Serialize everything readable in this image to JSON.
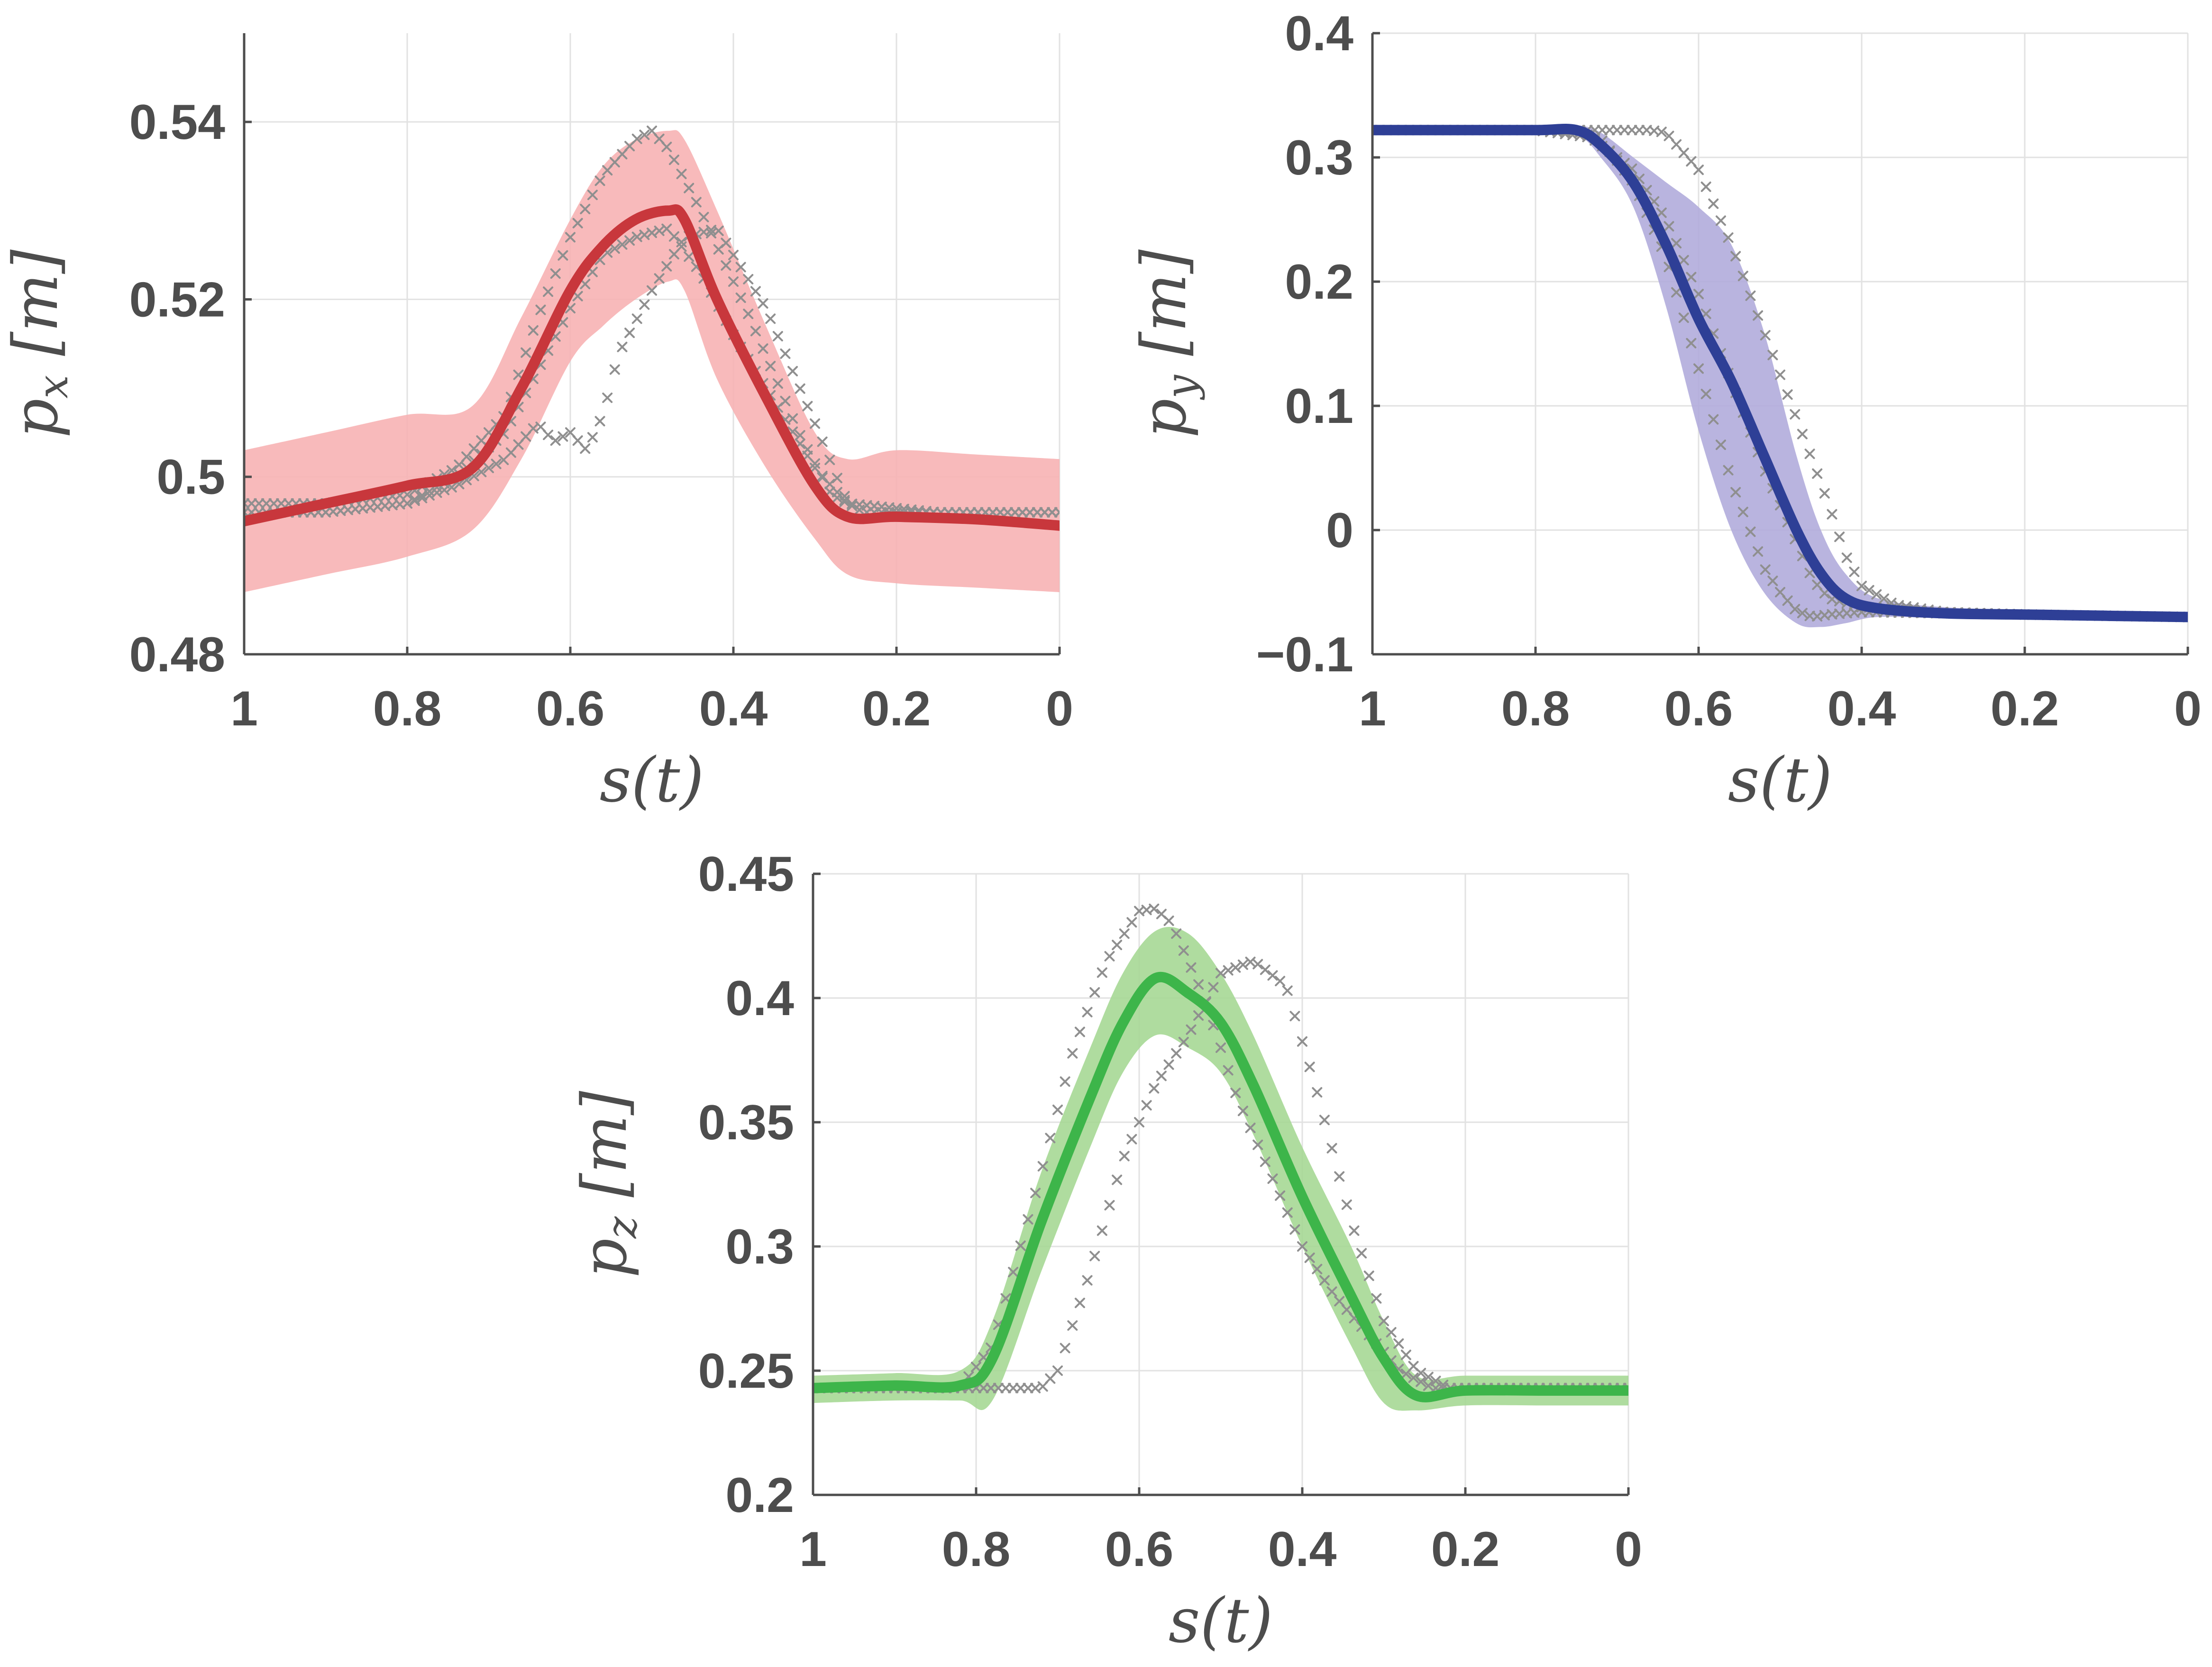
{
  "chart_data": [
    {
      "id": "px",
      "type": "line",
      "ylabel_symbol": "p",
      "ylabel_subscript": "x",
      "ylabel_unit": "[m]",
      "xlabel": "s(t)",
      "xlim": [
        1,
        0
      ],
      "ylim": [
        0.48,
        0.55
      ],
      "xticks": [
        1,
        0.8,
        0.6,
        0.4,
        0.2,
        0
      ],
      "xtick_labels": [
        "1",
        "0.8",
        "0.6",
        "0.4",
        "0.2",
        "0"
      ],
      "yticks": [
        0.48,
        0.5,
        0.52,
        0.54
      ],
      "ytick_labels": [
        "0.48",
        "0.5",
        "0.52",
        "0.54"
      ],
      "grid": true,
      "colors": {
        "mean": "#c8373c",
        "band": "#f7b2b4",
        "demo": "#8f8f8f"
      },
      "series": [
        {
          "name": "mean",
          "x": [
            1.0,
            0.9,
            0.8,
            0.72,
            0.66,
            0.6,
            0.56,
            0.52,
            0.48,
            0.46,
            0.42,
            0.36,
            0.3,
            0.26,
            0.2,
            0.1,
            0.0
          ],
          "y": [
            0.495,
            0.497,
            0.499,
            0.501,
            0.51,
            0.521,
            0.526,
            0.529,
            0.53,
            0.529,
            0.52,
            0.509,
            0.499,
            0.4955,
            0.4955,
            0.4952,
            0.4945
          ]
        },
        {
          "name": "band_upper",
          "x": [
            1.0,
            0.9,
            0.8,
            0.72,
            0.66,
            0.6,
            0.56,
            0.52,
            0.48,
            0.46,
            0.42,
            0.36,
            0.3,
            0.26,
            0.2,
            0.1,
            0.0
          ],
          "y": [
            0.503,
            0.505,
            0.507,
            0.508,
            0.518,
            0.529,
            0.535,
            0.538,
            0.539,
            0.538,
            0.53,
            0.517,
            0.505,
            0.502,
            0.503,
            0.5025,
            0.502
          ]
        },
        {
          "name": "band_lower",
          "x": [
            1.0,
            0.9,
            0.8,
            0.72,
            0.66,
            0.6,
            0.56,
            0.52,
            0.48,
            0.46,
            0.42,
            0.36,
            0.3,
            0.26,
            0.2,
            0.1,
            0.0
          ],
          "y": [
            0.487,
            0.489,
            0.491,
            0.494,
            0.502,
            0.513,
            0.517,
            0.52,
            0.522,
            0.521,
            0.511,
            0.501,
            0.493,
            0.489,
            0.488,
            0.4875,
            0.487
          ]
        },
        {
          "name": "demo_1",
          "x": [
            1.0,
            0.9,
            0.8,
            0.74,
            0.68,
            0.64,
            0.6,
            0.56,
            0.52,
            0.5,
            0.48,
            0.44,
            0.38,
            0.32,
            0.28,
            0.24,
            0.15,
            0.0
          ],
          "y": [
            0.497,
            0.497,
            0.498,
            0.501,
            0.507,
            0.518,
            0.527,
            0.534,
            0.538,
            0.539,
            0.537,
            0.53,
            0.518,
            0.505,
            0.498,
            0.496,
            0.496,
            0.496
          ]
        },
        {
          "name": "demo_2",
          "x": [
            1.0,
            0.9,
            0.8,
            0.74,
            0.68,
            0.64,
            0.62,
            0.6,
            0.58,
            0.56,
            0.54,
            0.5,
            0.46,
            0.42,
            0.36,
            0.3,
            0.26,
            0.15,
            0.0
          ],
          "y": [
            0.496,
            0.496,
            0.497,
            0.499,
            0.502,
            0.506,
            0.504,
            0.505,
            0.503,
            0.507,
            0.514,
            0.521,
            0.527,
            0.528,
            0.519,
            0.506,
            0.497,
            0.496,
            0.496
          ]
        },
        {
          "name": "demo_3",
          "x": [
            1.0,
            0.9,
            0.8,
            0.74,
            0.68,
            0.64,
            0.6,
            0.56,
            0.52,
            0.48,
            0.44,
            0.4,
            0.36,
            0.3,
            0.26,
            0.15,
            0.0
          ],
          "y": [
            0.496,
            0.496,
            0.497,
            0.5,
            0.505,
            0.512,
            0.519,
            0.525,
            0.527,
            0.528,
            0.523,
            0.516,
            0.51,
            0.501,
            0.497,
            0.496,
            0.496
          ]
        }
      ]
    },
    {
      "id": "py",
      "type": "line",
      "ylabel_symbol": "p",
      "ylabel_subscript": "y",
      "ylabel_unit": "[m]",
      "xlabel": "s(t)",
      "xlim": [
        1,
        0
      ],
      "ylim": [
        -0.1,
        0.4
      ],
      "xticks": [
        1,
        0.8,
        0.6,
        0.4,
        0.2,
        0
      ],
      "xtick_labels": [
        "1",
        "0.8",
        "0.6",
        "0.4",
        "0.2",
        "0"
      ],
      "yticks": [
        -0.1,
        0,
        0.1,
        0.2,
        0.3,
        0.4
      ],
      "ytick_labels": [
        "−0.1",
        "0",
        "0.1",
        "0.2",
        "0.3",
        "0.4"
      ],
      "grid": true,
      "colors": {
        "mean": "#2e3f96",
        "band": "#b1acdc",
        "demo": "#8f8f8f"
      },
      "series": [
        {
          "name": "mean",
          "x": [
            1.0,
            0.9,
            0.8,
            0.75,
            0.72,
            0.68,
            0.64,
            0.6,
            0.56,
            0.52,
            0.48,
            0.45,
            0.42,
            0.38,
            0.3,
            0.2,
            0.1,
            0.0
          ],
          "y": [
            0.322,
            0.322,
            0.322,
            0.322,
            0.31,
            0.28,
            0.23,
            0.17,
            0.12,
            0.06,
            0.0,
            -0.035,
            -0.055,
            -0.063,
            -0.067,
            -0.068,
            -0.069,
            -0.07
          ]
        },
        {
          "name": "band_upper",
          "x": [
            1.0,
            0.9,
            0.8,
            0.75,
            0.72,
            0.68,
            0.64,
            0.6,
            0.56,
            0.52,
            0.48,
            0.45,
            0.42,
            0.38,
            0.3,
            0.2,
            0.1,
            0.0
          ],
          "y": [
            0.326,
            0.326,
            0.326,
            0.326,
            0.32,
            0.3,
            0.28,
            0.26,
            0.23,
            0.16,
            0.06,
            0.0,
            -0.035,
            -0.055,
            -0.062,
            -0.064,
            -0.065,
            -0.066
          ]
        },
        {
          "name": "band_lower",
          "x": [
            1.0,
            0.9,
            0.8,
            0.75,
            0.72,
            0.68,
            0.64,
            0.6,
            0.56,
            0.52,
            0.48,
            0.45,
            0.42,
            0.38,
            0.3,
            0.2,
            0.1,
            0.0
          ],
          "y": [
            0.318,
            0.318,
            0.318,
            0.318,
            0.3,
            0.26,
            0.18,
            0.08,
            0.0,
            -0.05,
            -0.075,
            -0.078,
            -0.075,
            -0.07,
            -0.071,
            -0.072,
            -0.073,
            -0.074
          ]
        },
        {
          "name": "demo_1",
          "x": [
            1.0,
            0.9,
            0.8,
            0.72,
            0.68,
            0.64,
            0.6,
            0.56,
            0.52,
            0.5,
            0.48,
            0.46,
            0.44,
            0.4,
            0.3,
            0.2,
            0.0
          ],
          "y": [
            0.322,
            0.322,
            0.322,
            0.315,
            0.28,
            0.22,
            0.13,
            0.04,
            -0.03,
            -0.05,
            -0.065,
            -0.07,
            -0.068,
            -0.066,
            -0.067,
            -0.068,
            -0.07
          ]
        },
        {
          "name": "demo_2",
          "x": [
            1.0,
            0.9,
            0.8,
            0.74,
            0.68,
            0.64,
            0.6,
            0.56,
            0.52,
            0.48,
            0.46,
            0.44,
            0.4,
            0.3,
            0.2,
            0.0
          ],
          "y": [
            0.322,
            0.322,
            0.322,
            0.32,
            0.29,
            0.25,
            0.19,
            0.12,
            0.05,
            -0.01,
            -0.04,
            -0.055,
            -0.062,
            -0.066,
            -0.068,
            -0.07
          ]
        },
        {
          "name": "demo_3",
          "x": [
            1.0,
            0.9,
            0.8,
            0.74,
            0.7,
            0.66,
            0.64,
            0.6,
            0.56,
            0.52,
            0.48,
            0.44,
            0.42,
            0.4,
            0.36,
            0.3,
            0.2,
            0.0
          ],
          "y": [
            0.322,
            0.322,
            0.322,
            0.322,
            0.322,
            0.322,
            0.32,
            0.29,
            0.23,
            0.16,
            0.09,
            0.02,
            -0.02,
            -0.045,
            -0.06,
            -0.066,
            -0.068,
            -0.07
          ]
        }
      ]
    },
    {
      "id": "pz",
      "type": "line",
      "ylabel_symbol": "p",
      "ylabel_subscript": "z",
      "ylabel_unit": "[m]",
      "xlabel": "s(t)",
      "xlim": [
        1,
        0
      ],
      "ylim": [
        0.2,
        0.45
      ],
      "xticks": [
        1,
        0.8,
        0.6,
        0.4,
        0.2,
        0
      ],
      "xtick_labels": [
        "1",
        "0.8",
        "0.6",
        "0.4",
        "0.2",
        "0"
      ],
      "yticks": [
        0.2,
        0.25,
        0.3,
        0.35,
        0.4,
        0.45
      ],
      "ytick_labels": [
        "0.2",
        "0.25",
        "0.3",
        "0.35",
        "0.4",
        "0.45"
      ],
      "grid": true,
      "colors": {
        "mean": "#3db54a",
        "band": "#a6d895",
        "demo": "#8f8f8f"
      },
      "series": [
        {
          "name": "mean",
          "x": [
            1.0,
            0.9,
            0.82,
            0.78,
            0.72,
            0.66,
            0.62,
            0.58,
            0.54,
            0.5,
            0.46,
            0.4,
            0.34,
            0.3,
            0.26,
            0.2,
            0.1,
            0.0
          ],
          "y": [
            0.243,
            0.244,
            0.244,
            0.255,
            0.31,
            0.36,
            0.39,
            0.408,
            0.402,
            0.39,
            0.365,
            0.32,
            0.28,
            0.255,
            0.24,
            0.242,
            0.242,
            0.242
          ]
        },
        {
          "name": "band_upper",
          "x": [
            1.0,
            0.9,
            0.82,
            0.78,
            0.72,
            0.66,
            0.62,
            0.58,
            0.54,
            0.5,
            0.46,
            0.4,
            0.34,
            0.3,
            0.26,
            0.2,
            0.1,
            0.0
          ],
          "y": [
            0.248,
            0.249,
            0.25,
            0.27,
            0.33,
            0.38,
            0.41,
            0.427,
            0.426,
            0.41,
            0.385,
            0.34,
            0.3,
            0.27,
            0.248,
            0.248,
            0.248,
            0.248
          ]
        },
        {
          "name": "band_lower",
          "x": [
            1.0,
            0.9,
            0.82,
            0.78,
            0.72,
            0.66,
            0.62,
            0.58,
            0.54,
            0.5,
            0.46,
            0.4,
            0.34,
            0.3,
            0.26,
            0.2,
            0.1,
            0.0
          ],
          "y": [
            0.237,
            0.238,
            0.238,
            0.238,
            0.29,
            0.34,
            0.37,
            0.385,
            0.38,
            0.37,
            0.345,
            0.3,
            0.26,
            0.237,
            0.234,
            0.236,
            0.236,
            0.236
          ]
        },
        {
          "name": "demo_1",
          "x": [
            1.0,
            0.9,
            0.82,
            0.78,
            0.72,
            0.68,
            0.64,
            0.6,
            0.58,
            0.56,
            0.52,
            0.48,
            0.44,
            0.4,
            0.36,
            0.32,
            0.28,
            0.24,
            0.2,
            0.1,
            0.0
          ],
          "y": [
            0.243,
            0.243,
            0.243,
            0.26,
            0.33,
            0.38,
            0.415,
            0.435,
            0.436,
            0.43,
            0.4,
            0.36,
            0.33,
            0.3,
            0.28,
            0.265,
            0.25,
            0.243,
            0.243,
            0.243,
            0.243
          ]
        },
        {
          "name": "demo_2",
          "x": [
            1.0,
            0.9,
            0.8,
            0.76,
            0.72,
            0.7,
            0.66,
            0.62,
            0.58,
            0.54,
            0.5,
            0.46,
            0.42,
            0.38,
            0.34,
            0.3,
            0.26,
            0.22,
            0.15,
            0.0
          ],
          "y": [
            0.243,
            0.243,
            0.243,
            0.243,
            0.243,
            0.25,
            0.29,
            0.335,
            0.365,
            0.385,
            0.41,
            0.415,
            0.405,
            0.36,
            0.31,
            0.27,
            0.25,
            0.243,
            0.243,
            0.243
          ]
        }
      ]
    }
  ]
}
